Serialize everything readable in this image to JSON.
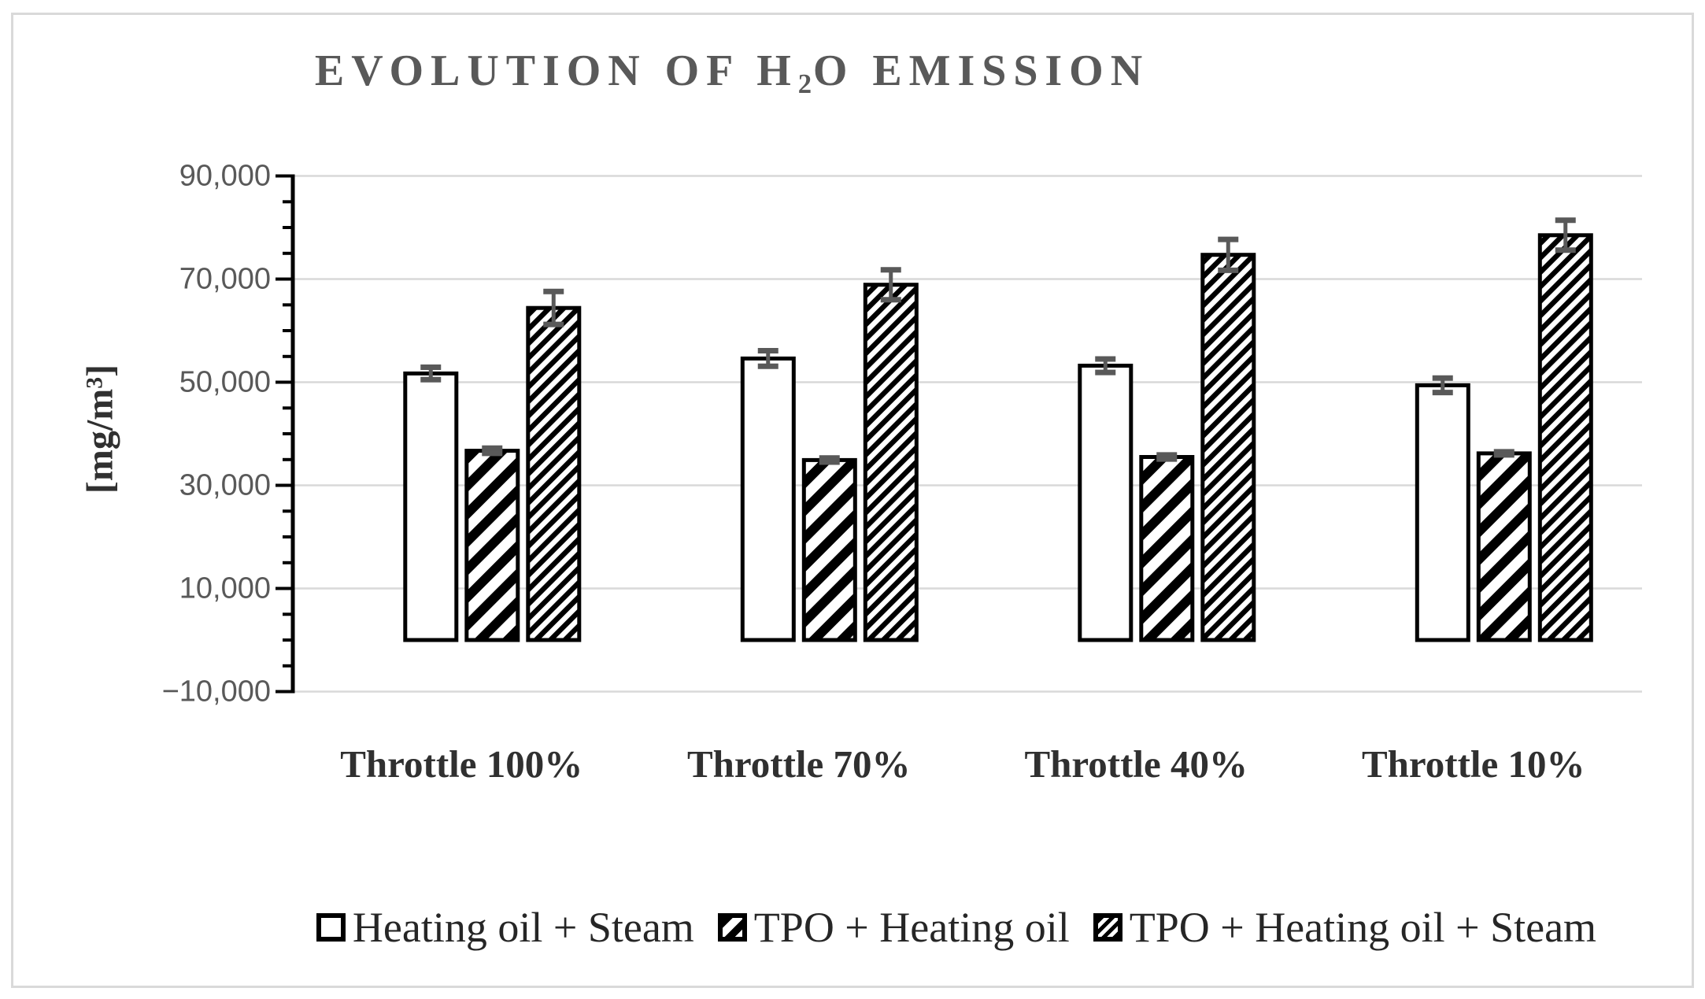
{
  "chart_data": {
    "type": "bar",
    "title": "EVOLUTION OF H2O EMISSION",
    "title_parts": {
      "pre": "EVOLUTION OF H",
      "sub": "2",
      "post": "O EMISSION"
    },
    "ylabel": "[mg/m3]",
    "ylabel_parts": {
      "pre": "[mg/m",
      "sup": "3",
      "post": "]"
    },
    "categories": [
      "Throttle 100%",
      "Throttle 70%",
      "Throttle 40%",
      "Throttle 10%"
    ],
    "series": [
      {
        "name": "Heating oil + Steam",
        "pattern": "outline-white",
        "values": [
          51700,
          54600,
          53200,
          49400
        ],
        "errors": [
          1200,
          1500,
          1300,
          1400
        ]
      },
      {
        "name": "TPO + Heating oil",
        "pattern": "diagonal-stripe-wide",
        "values": [
          36700,
          34900,
          35500,
          36200
        ],
        "errors": [
          500,
          400,
          400,
          300
        ]
      },
      {
        "name": "TPO + Heating oil + Steam",
        "pattern": "diagonal-stripe-dense",
        "values": [
          64400,
          68900,
          74700,
          78500
        ],
        "errors": [
          3200,
          2900,
          3000,
          2900
        ]
      }
    ],
    "axis": {
      "ymin": -10000,
      "ymax": 90000,
      "major_step": 20000,
      "minor_step": 5000,
      "grid": true,
      "ticks": [
        {
          "value": 90000,
          "label": "90,000"
        },
        {
          "value": 70000,
          "label": "70,000"
        },
        {
          "value": 50000,
          "label": "50,000"
        },
        {
          "value": 30000,
          "label": "30,000"
        },
        {
          "value": 10000,
          "label": "10,000"
        },
        {
          "value": -10000,
          "label": "−10,000"
        }
      ]
    },
    "legend_position": "bottom",
    "colors": {
      "title_text": "#595959",
      "tick_text": "#595959",
      "category_text": "#303030",
      "legend_text": "#262626",
      "gridline": "#d9d9d9",
      "axis_line": "#000000",
      "bar_stroke": "#000000",
      "error_bar": "#595959",
      "frame_border": "#d9d9d9"
    }
  }
}
